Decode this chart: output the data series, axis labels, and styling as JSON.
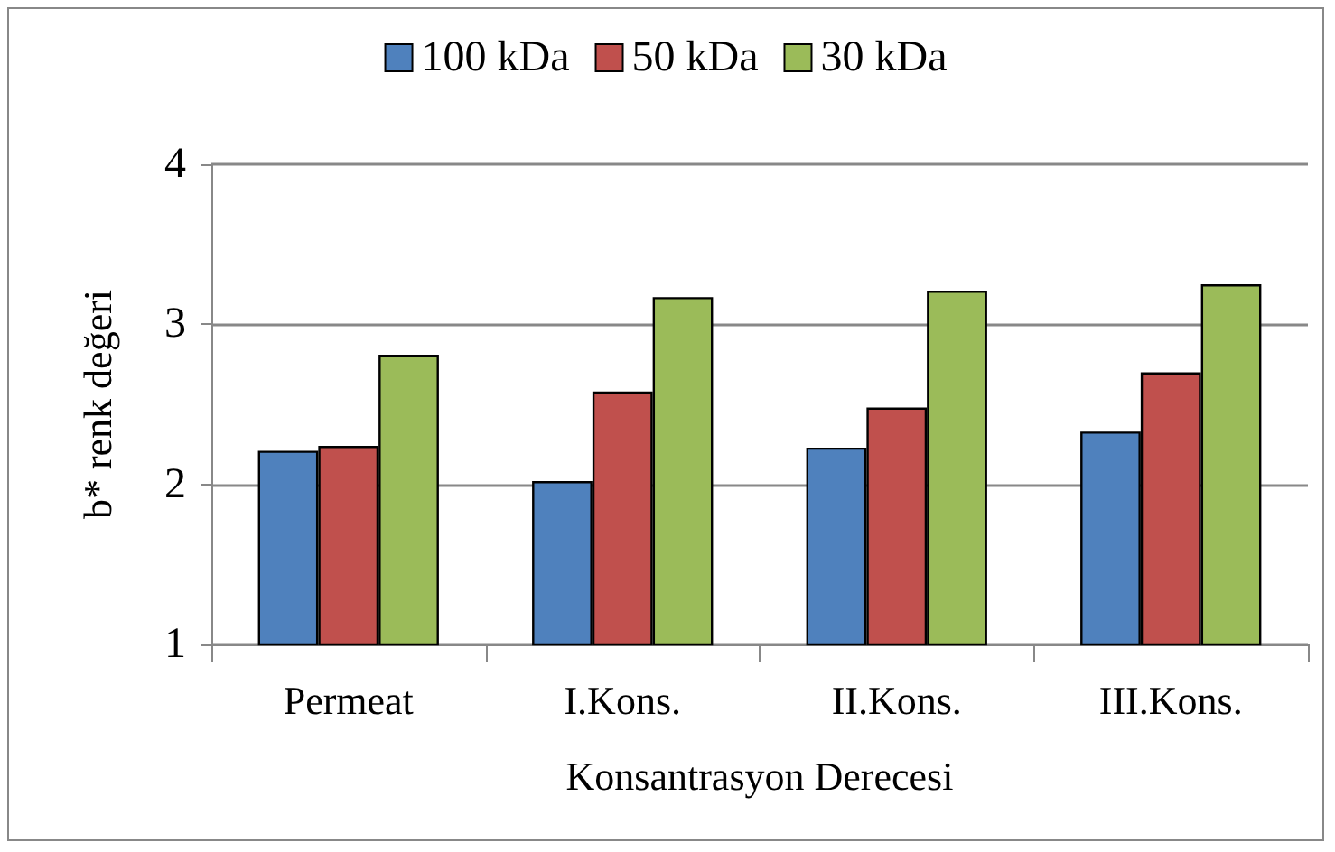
{
  "chart_data": {
    "type": "bar",
    "xlabel": "Konsantrasyon Derecesi",
    "ylabel": "b* renk değeri",
    "categories": [
      "Permeat",
      "I.Kons.",
      "II.Kons.",
      "III.Kons."
    ],
    "series": [
      {
        "name": "100 kDa",
        "color": "#4f81bd",
        "values": [
          2.21,
          2.02,
          2.23,
          2.33
        ]
      },
      {
        "name": "50 kDa",
        "color": "#c0504d",
        "values": [
          2.24,
          2.58,
          2.48,
          2.7
        ]
      },
      {
        "name": "30 kDa",
        "color": "#9bbb59",
        "values": [
          2.81,
          3.17,
          3.21,
          3.25
        ]
      }
    ],
    "ylim": [
      1,
      4
    ],
    "yticks": [
      1,
      2,
      3,
      4
    ],
    "grid": "y",
    "legend": "top"
  }
}
